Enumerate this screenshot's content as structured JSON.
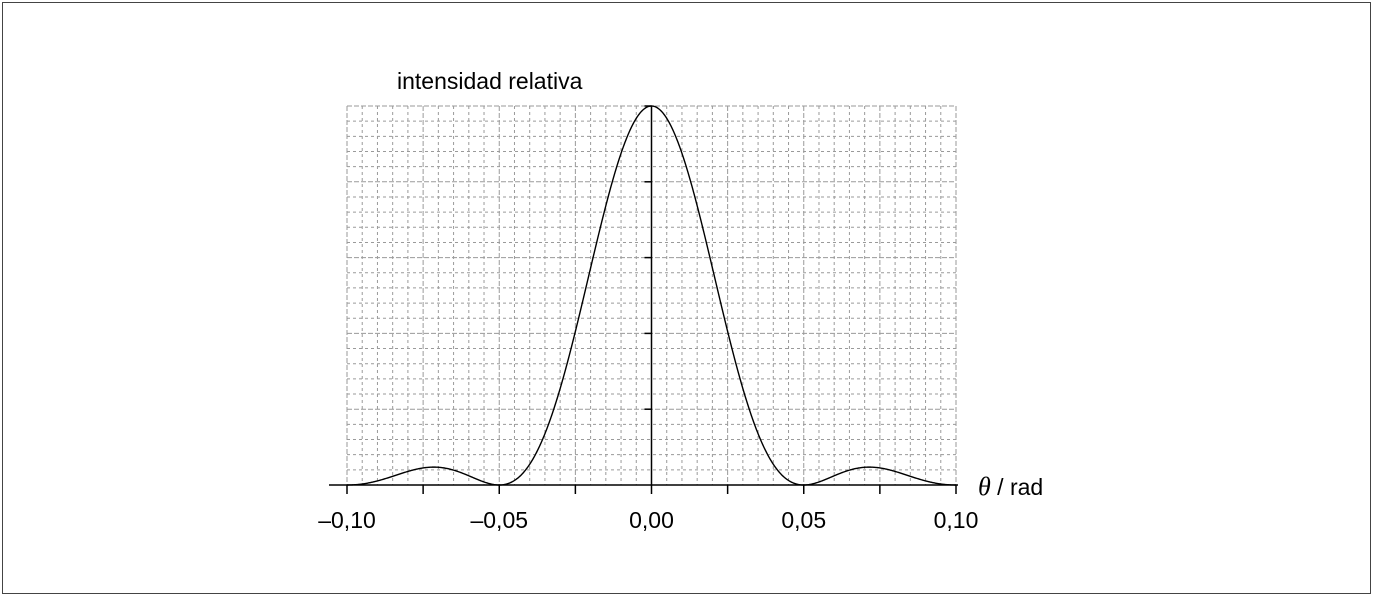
{
  "chart_data": {
    "type": "line",
    "title": "",
    "ylabel": "intensidad relativa",
    "xlabel_symbol": "θ",
    "xlabel_unit": " / rad",
    "xlim": [
      -0.1,
      0.1
    ],
    "ylim": [
      0,
      1
    ],
    "x_ticks": [
      -0.1,
      -0.05,
      0.0,
      0.05,
      0.1
    ],
    "x_tick_labels": [
      "–0,10",
      "–0,05",
      "0,00",
      "0,05",
      "0,10"
    ],
    "grid": true,
    "series": [
      {
        "function": "single-slit diffraction sinc^2",
        "first_minimum": 0.05,
        "secondary_maxima": [
          -0.0715,
          0.0715
        ],
        "peak": 1.0
      }
    ],
    "colors": {
      "curve": "#000000",
      "grid": "#9a9a9a",
      "axis": "#000000",
      "frame": "#444444"
    }
  }
}
